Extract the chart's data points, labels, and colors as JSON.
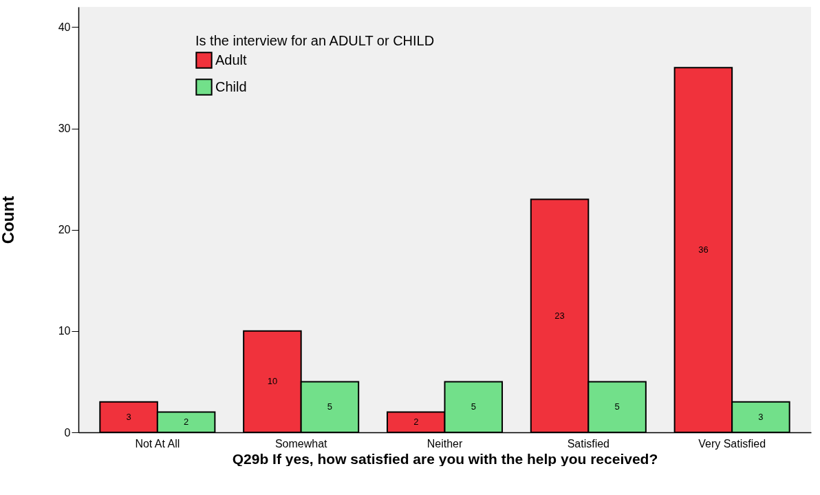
{
  "chart_data": {
    "type": "bar",
    "xlabel": "Q29b If yes, how satisfied are you with the help you received?",
    "ylabel": "Count",
    "legend_title": "Is the interview for an ADULT or CHILD",
    "categories": [
      "Not At All",
      "Somewhat",
      "Neither",
      "Satisfied",
      "Very Satisfied"
    ],
    "series": [
      {
        "name": "Adult",
        "color": "#f0323c",
        "values": [
          3,
          10,
          2,
          23,
          36
        ]
      },
      {
        "name": "Child",
        "color": "#72e08a",
        "values": [
          2,
          5,
          5,
          5,
          3
        ]
      }
    ],
    "ylim": [
      0,
      42
    ],
    "yticks": [
      0,
      10,
      20,
      30,
      40
    ],
    "grid": false,
    "legend": "top left",
    "data_labels": true
  }
}
